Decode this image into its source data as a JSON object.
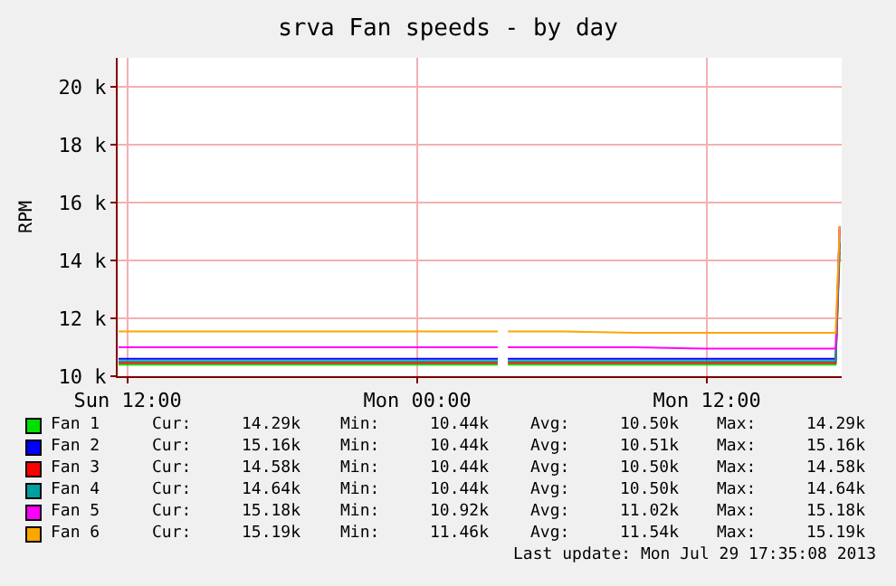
{
  "chart_data": {
    "type": "line",
    "title": "srva Fan speeds - by day",
    "ylabel": "RPM",
    "x": [
      "2013-07-28T11:37",
      "2013-07-28T14:00",
      "2013-07-28T17:00",
      "2013-07-28T20:00",
      "2013-07-28T23:00",
      "2013-07-29T02:00",
      "2013-07-29T03:20",
      "2013-07-29T03:30",
      "2013-07-29T03:45",
      "2013-07-29T06:00",
      "2013-07-29T09:00",
      "2013-07-29T12:00",
      "2013-07-29T15:00",
      "2013-07-29T17:20",
      "2013-07-29T17:30"
    ],
    "series": [
      {
        "name": "Fan 1",
        "color": "#00e000",
        "values": [
          10400,
          10400,
          10400,
          10400,
          10400,
          10400,
          10400,
          null,
          10400,
          10400,
          10400,
          10400,
          10400,
          10400,
          14290
        ]
      },
      {
        "name": "Fan 2",
        "color": "#0000ff",
        "values": [
          10600,
          10600,
          10600,
          10600,
          10600,
          10600,
          10600,
          null,
          10600,
          10600,
          10600,
          10600,
          10600,
          10600,
          15160
        ]
      },
      {
        "name": "Fan 3",
        "color": "#ff0000",
        "values": [
          10460,
          10460,
          10460,
          10460,
          10460,
          10460,
          10460,
          null,
          10460,
          10460,
          10460,
          10460,
          10460,
          10460,
          14580
        ]
      },
      {
        "name": "Fan 4",
        "color": "#00a0a0",
        "values": [
          10520,
          10520,
          10520,
          10520,
          10520,
          10520,
          10520,
          null,
          10520,
          10520,
          10520,
          10520,
          10520,
          10520,
          14640
        ]
      },
      {
        "name": "Fan 5",
        "color": "#ff00ff",
        "values": [
          11000,
          11000,
          11000,
          11000,
          11000,
          11000,
          11000,
          null,
          11000,
          11000,
          11000,
          10950,
          10950,
          10950,
          15180
        ]
      },
      {
        "name": "Fan 6",
        "color": "#ffa500",
        "values": [
          11550,
          11550,
          11550,
          11550,
          11550,
          11550,
          11550,
          null,
          11550,
          11550,
          11500,
          11500,
          11500,
          11500,
          15190
        ]
      }
    ],
    "xlim": [
      "2013-07-28T11:35",
      "2013-07-29T17:35"
    ],
    "xticks": [
      {
        "value": "2013-07-28T12:00",
        "label": "Sun 12:00"
      },
      {
        "value": "2013-07-29T00:00",
        "label": "Mon 00:00"
      },
      {
        "value": "2013-07-29T12:00",
        "label": "Mon 12:00"
      }
    ],
    "ylim": [
      10000,
      21000
    ],
    "yticks": [
      {
        "value": 10000,
        "label": "10 k"
      },
      {
        "value": 12000,
        "label": "12 k"
      },
      {
        "value": 14000,
        "label": "14 k"
      },
      {
        "value": 16000,
        "label": "16 k"
      },
      {
        "value": 18000,
        "label": "18 k"
      },
      {
        "value": 20000,
        "label": "20 k"
      }
    ],
    "grid": true,
    "legend": "bottom",
    "marker": "none",
    "line_style": "solid",
    "annotations": [
      "Cur:",
      "14.29k",
      "Min:",
      "10.44k",
      "Avg:",
      "10.50k",
      "Max:",
      "14.29k",
      "Cur:",
      "15.16k",
      "Min:",
      "10.44k",
      "Avg:",
      "10.51k",
      "Max:",
      "15.16k",
      "Cur:",
      "14.58k",
      "Min:",
      "10.44k",
      "Avg:",
      "10.50k",
      "Max:",
      "14.58k",
      "Cur:",
      "14.64k",
      "Min:",
      "10.44k",
      "Avg:",
      "10.50k",
      "Max:",
      "14.64k",
      "Cur:",
      "15.18k",
      "Min:",
      "10.92k",
      "Avg:",
      "11.02k",
      "Max:",
      "15.18k",
      "Cur:",
      "15.19k",
      "Min:",
      "11.46k",
      "Avg:",
      "11.54k",
      "Max:",
      "15.19k",
      "Last update: Mon Jul 29 17:35:08 2013"
    ]
  }
}
